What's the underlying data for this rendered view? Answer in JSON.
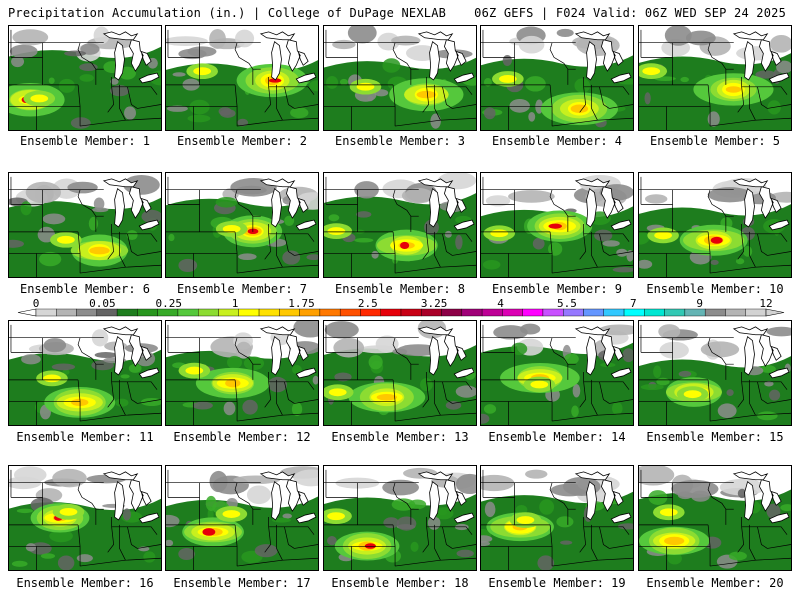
{
  "header": {
    "left": "Precipitation Accumulation (in.) | College of DuPage NEXLAB",
    "right": "06Z GEFS | F024 Valid: 06Z WED SEP 24 2025"
  },
  "panel_caption_prefix": "Ensemble Member: ",
  "members": [
    {
      "caption": "Ensemble Member: 1",
      "id": 1
    },
    {
      "caption": "Ensemble Member: 2",
      "id": 2
    },
    {
      "caption": "Ensemble Member: 3",
      "id": 3
    },
    {
      "caption": "Ensemble Member: 4",
      "id": 4
    },
    {
      "caption": "Ensemble Member: 5",
      "id": 5
    },
    {
      "caption": "Ensemble Member: 6",
      "id": 6
    },
    {
      "caption": "Ensemble Member: 7",
      "id": 7
    },
    {
      "caption": "Ensemble Member: 8",
      "id": 8
    },
    {
      "caption": "Ensemble Member: 9",
      "id": 9
    },
    {
      "caption": "Ensemble Member: 10",
      "id": 10
    },
    {
      "caption": "Ensemble Member: 11",
      "id": 11
    },
    {
      "caption": "Ensemble Member: 12",
      "id": 12
    },
    {
      "caption": "Ensemble Member: 13",
      "id": 13
    },
    {
      "caption": "Ensemble Member: 14",
      "id": 14
    },
    {
      "caption": "Ensemble Member: 15",
      "id": 15
    },
    {
      "caption": "Ensemble Member: 16",
      "id": 16
    },
    {
      "caption": "Ensemble Member: 17",
      "id": 17
    },
    {
      "caption": "Ensemble Member: 18",
      "id": 18
    },
    {
      "caption": "Ensemble Member: 19",
      "id": 19
    },
    {
      "caption": "Ensemble Member: 20",
      "id": 20
    }
  ],
  "legend": {
    "tick_labels": [
      "0",
      "0.05",
      "0.25",
      "1",
      "1.75",
      "2.5",
      "3.25",
      "4",
      "5.5",
      "7",
      "9",
      "12"
    ],
    "colors": [
      "#d6d6d6",
      "#b4b4b4",
      "#8c8c8c",
      "#646464",
      "#1e7d1e",
      "#28961e",
      "#37aa28",
      "#55c83c",
      "#8cdc32",
      "#c8f01e",
      "#ffff00",
      "#ffe100",
      "#ffc800",
      "#ffa000",
      "#ff7800",
      "#ff5000",
      "#ff2800",
      "#e6000a",
      "#c80014",
      "#aa0028",
      "#8c0046",
      "#a00078",
      "#be0096",
      "#dc00b4",
      "#ff00ff",
      "#c850ff",
      "#9678ff",
      "#6496ff",
      "#32c8ff",
      "#00ffff",
      "#00e6d2",
      "#32c8b4",
      "#64b4b4",
      "#8c8c8c",
      "#b4b4b4",
      "#d2d2d2"
    ]
  }
}
